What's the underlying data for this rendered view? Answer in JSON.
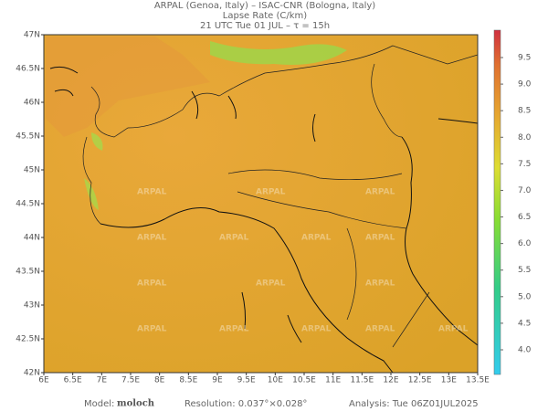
{
  "header": {
    "line1": "ARPAL (Genoa, Italy)  –  ISAC-CNR (Bologna, Italy)",
    "line2": "Lapse Rate (C/km)",
    "line3": "21 UTC Tue 01 JUL  –  τ = 15h"
  },
  "map": {
    "lon_ticks": [
      "6E",
      "6.5E",
      "7E",
      "7.5E",
      "8E",
      "8.5E",
      "9E",
      "9.5E",
      "10E",
      "10.5E",
      "11E",
      "11.5E",
      "12E",
      "12.5E",
      "13E",
      "13.5E"
    ],
    "lat_ticks": [
      "42N",
      "42.5N",
      "43N",
      "43.5N",
      "44N",
      "44.5N",
      "45N",
      "45.5N",
      "46N",
      "46.5N",
      "47N"
    ],
    "watermark": "ARPAL"
  },
  "colorbar": {
    "ticks": [
      "4.0",
      "4.5",
      "5.0",
      "5.5",
      "6.0",
      "6.5",
      "7.0",
      "7.5",
      "8.0",
      "8.5",
      "9.0",
      "9.5"
    ]
  },
  "footer": {
    "model_label": "Model:",
    "model": "moloch",
    "resolution": "Resolution: 0.037°×0.028°",
    "analysis": "Analysis: Tue 06Z01JUL2025"
  }
}
